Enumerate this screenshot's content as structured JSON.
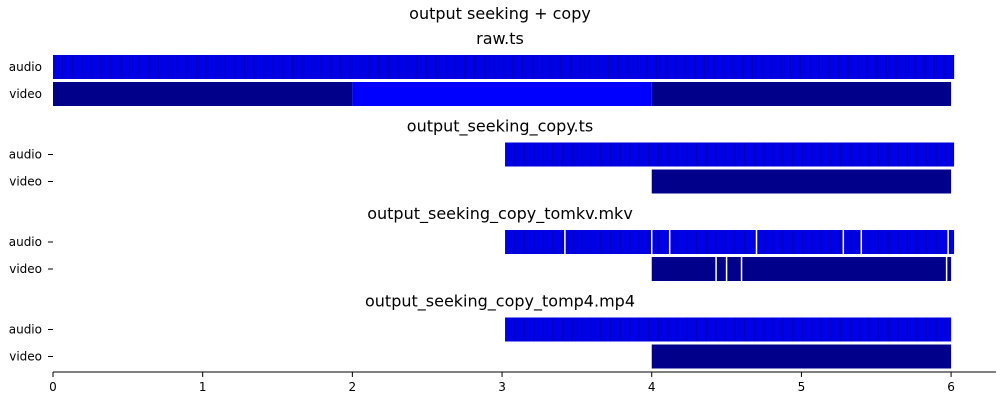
{
  "figure": {
    "title": "output seeking + copy"
  },
  "chart_data": {
    "type": "bar",
    "orientation": "horizontal",
    "xlim": [
      0,
      6.3
    ],
    "xticks": [
      0,
      1,
      2,
      3,
      4,
      5,
      6
    ],
    "tick_labels": [
      "0",
      "1",
      "2",
      "3",
      "4",
      "5",
      "6"
    ],
    "colors": {
      "audio": "#0000e6",
      "audio_stripe": "#000099",
      "video": "#00008b",
      "video_keyframe": "#0000ff",
      "gap": "#ffffff"
    },
    "panels": [
      {
        "title": "raw.ts",
        "tracks": [
          {
            "label": "audio",
            "start": 0.0,
            "end": 6.02,
            "packet_duration": 0.064,
            "gaps": []
          },
          {
            "label": "video",
            "start": 0.0,
            "end": 6.0,
            "segments": [
              {
                "start": 0.0,
                "end": 2.0,
                "kind": "normal"
              },
              {
                "start": 2.0,
                "end": 4.0,
                "kind": "keyframe"
              },
              {
                "start": 4.0,
                "end": 6.0,
                "kind": "normal"
              }
            ],
            "gaps": []
          }
        ]
      },
      {
        "title": "output_seeking_copy.ts",
        "tracks": [
          {
            "label": "audio",
            "start": 3.02,
            "end": 6.02,
            "packet_duration": 0.064,
            "gaps": []
          },
          {
            "label": "video",
            "start": 4.0,
            "end": 6.0,
            "segments": [
              {
                "start": 4.0,
                "end": 6.0,
                "kind": "normal"
              }
            ],
            "gaps": []
          }
        ]
      },
      {
        "title": "output_seeking_copy_tomkv.mkv",
        "tracks": [
          {
            "label": "audio",
            "start": 3.02,
            "end": 6.02,
            "packet_duration": 0.064,
            "gaps": [
              3.42,
              4.0,
              4.12,
              4.7,
              5.28,
              5.4,
              5.98
            ]
          },
          {
            "label": "video",
            "start": 4.0,
            "end": 6.0,
            "segments": [
              {
                "start": 4.0,
                "end": 6.0,
                "kind": "normal"
              }
            ],
            "gaps": [
              4.43,
              4.5,
              4.6,
              5.97
            ]
          }
        ]
      },
      {
        "title": "output_seeking_copy_tomp4.mp4",
        "tracks": [
          {
            "label": "audio",
            "start": 3.02,
            "end": 6.0,
            "packet_duration": 0.064,
            "gaps": []
          },
          {
            "label": "video",
            "start": 4.0,
            "end": 6.0,
            "segments": [
              {
                "start": 4.0,
                "end": 6.0,
                "kind": "normal"
              }
            ],
            "gaps": []
          }
        ]
      }
    ]
  }
}
